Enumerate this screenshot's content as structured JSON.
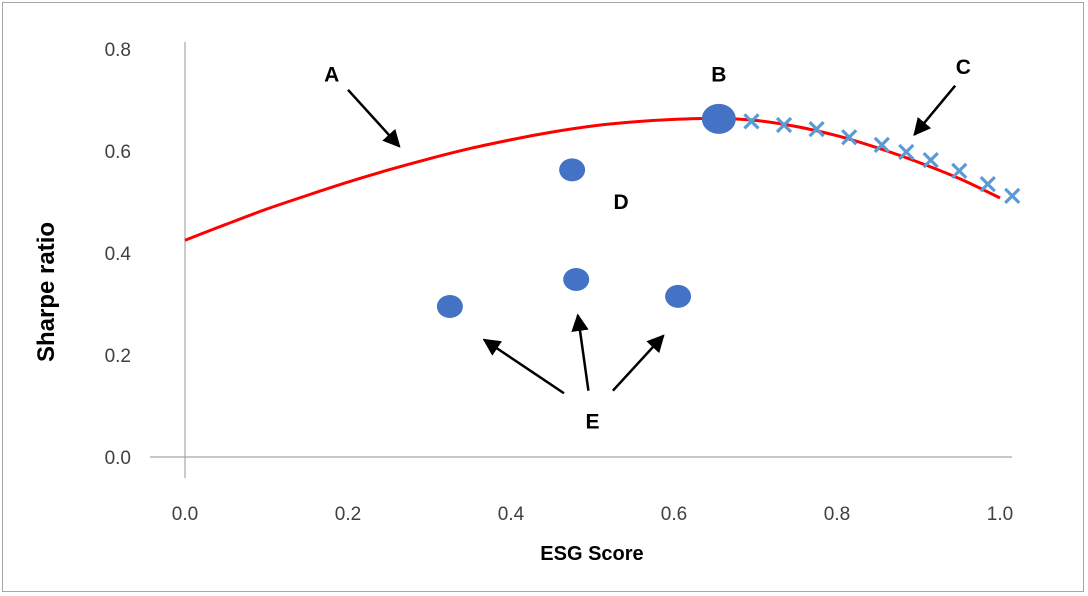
{
  "chart_data": {
    "type": "line",
    "title": "",
    "xlabel": "ESG Score",
    "ylabel": "Sharpe ratio",
    "xlim": [
      0,
      1
    ],
    "ylim": [
      0,
      0.8
    ],
    "x_ticks": [
      "0.0",
      "0.2",
      "0.4",
      "0.6",
      "0.8",
      "1.0"
    ],
    "y_ticks": [
      "0.0",
      "0.2",
      "0.4",
      "0.6",
      "0.8"
    ],
    "grid": false,
    "legend": "none",
    "colors": {
      "curve": "#ff0000",
      "point": "#4472c4",
      "cross": "#5b9bd5",
      "axis": "#a6a6a6",
      "arrow": "#000000"
    },
    "curve": {
      "x": [
        0.0,
        0.05,
        0.1,
        0.15,
        0.2,
        0.25,
        0.3,
        0.35,
        0.4,
        0.45,
        0.5,
        0.55,
        0.6,
        0.65,
        0.7,
        0.75,
        0.8,
        0.85,
        0.9,
        0.95,
        1.0
      ],
      "y": [
        0.425,
        0.456,
        0.486,
        0.513,
        0.539,
        0.563,
        0.585,
        0.605,
        0.622,
        0.637,
        0.649,
        0.657,
        0.662,
        0.664,
        0.66,
        0.648,
        0.63,
        0.606,
        0.578,
        0.546,
        0.508
      ]
    },
    "point_B": {
      "x": 0.655,
      "y": 0.663
    },
    "point_D": {
      "x": 0.475,
      "y": 0.563
    },
    "points_E": [
      {
        "x": 0.325,
        "y": 0.295
      },
      {
        "x": 0.48,
        "y": 0.348
      },
      {
        "x": 0.605,
        "y": 0.315
      }
    ],
    "crosses_C": {
      "x": [
        0.695,
        0.735,
        0.775,
        0.815,
        0.855,
        0.885,
        0.915,
        0.95,
        0.985,
        1.015
      ],
      "y": [
        0.658,
        0.651,
        0.643,
        0.627,
        0.612,
        0.598,
        0.582,
        0.561,
        0.535,
        0.512
      ]
    },
    "annotations": [
      {
        "label": "A",
        "text_at": [
          0.18,
          0.75
        ],
        "arrow_from": [
          0.2,
          0.72
        ],
        "arrow_to": [
          0.263,
          0.609
        ]
      },
      {
        "label": "B",
        "text_at": [
          0.655,
          0.75
        ]
      },
      {
        "label": "C",
        "text_at": [
          0.955,
          0.765
        ],
        "arrow_from": [
          0.945,
          0.728
        ],
        "arrow_to": [
          0.895,
          0.632
        ]
      },
      {
        "label": "D",
        "text_at": [
          0.535,
          0.5
        ]
      },
      {
        "label": "E",
        "text_at": [
          0.5,
          0.07
        ],
        "arrows": [
          {
            "from": [
              0.465,
              0.125
            ],
            "to": [
              0.367,
              0.23
            ]
          },
          {
            "from": [
              0.495,
              0.13
            ],
            "to": [
              0.482,
              0.278
            ]
          },
          {
            "from": [
              0.525,
              0.13
            ],
            "to": [
              0.587,
              0.238
            ]
          }
        ]
      }
    ]
  }
}
